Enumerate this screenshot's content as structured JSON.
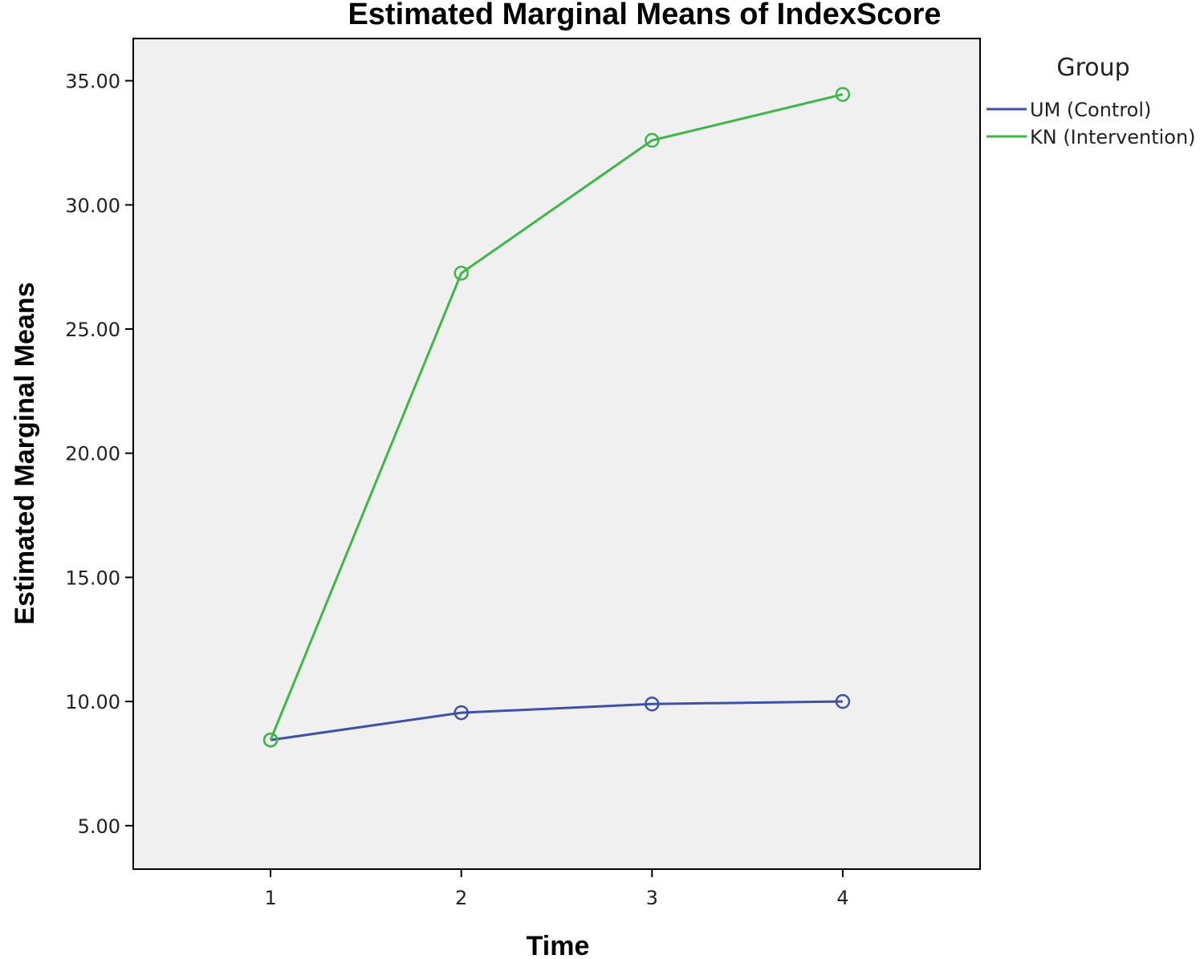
{
  "chart_data": {
    "type": "line",
    "title": "Estimated Marginal Means of IndexScore",
    "xlabel": "Time",
    "ylabel": "Estimated Marginal Means",
    "x": [
      1,
      2,
      3,
      4
    ],
    "x_tick_labels": [
      "1",
      "2",
      "3",
      "4"
    ],
    "xlim": [
      0.28,
      4.72
    ],
    "ylim": [
      3.25,
      36.7
    ],
    "y_ticks": [
      5,
      10,
      15,
      20,
      25,
      30,
      35
    ],
    "y_tick_labels": [
      "5.00",
      "10.00",
      "15.00",
      "20.00",
      "25.00",
      "30.00",
      "35.00"
    ],
    "grid": false,
    "plot_background": "#f0f0f0",
    "legend": {
      "title": "Group",
      "placement": "right"
    },
    "series": [
      {
        "name": "UM (Control)",
        "color": "#3f51a6",
        "values": [
          8.45,
          9.55,
          9.9,
          10.0
        ]
      },
      {
        "name": "KN (Intervention)",
        "color": "#3fb64a",
        "values": [
          8.45,
          27.25,
          32.6,
          34.45
        ]
      }
    ],
    "marker": "open-circle"
  }
}
